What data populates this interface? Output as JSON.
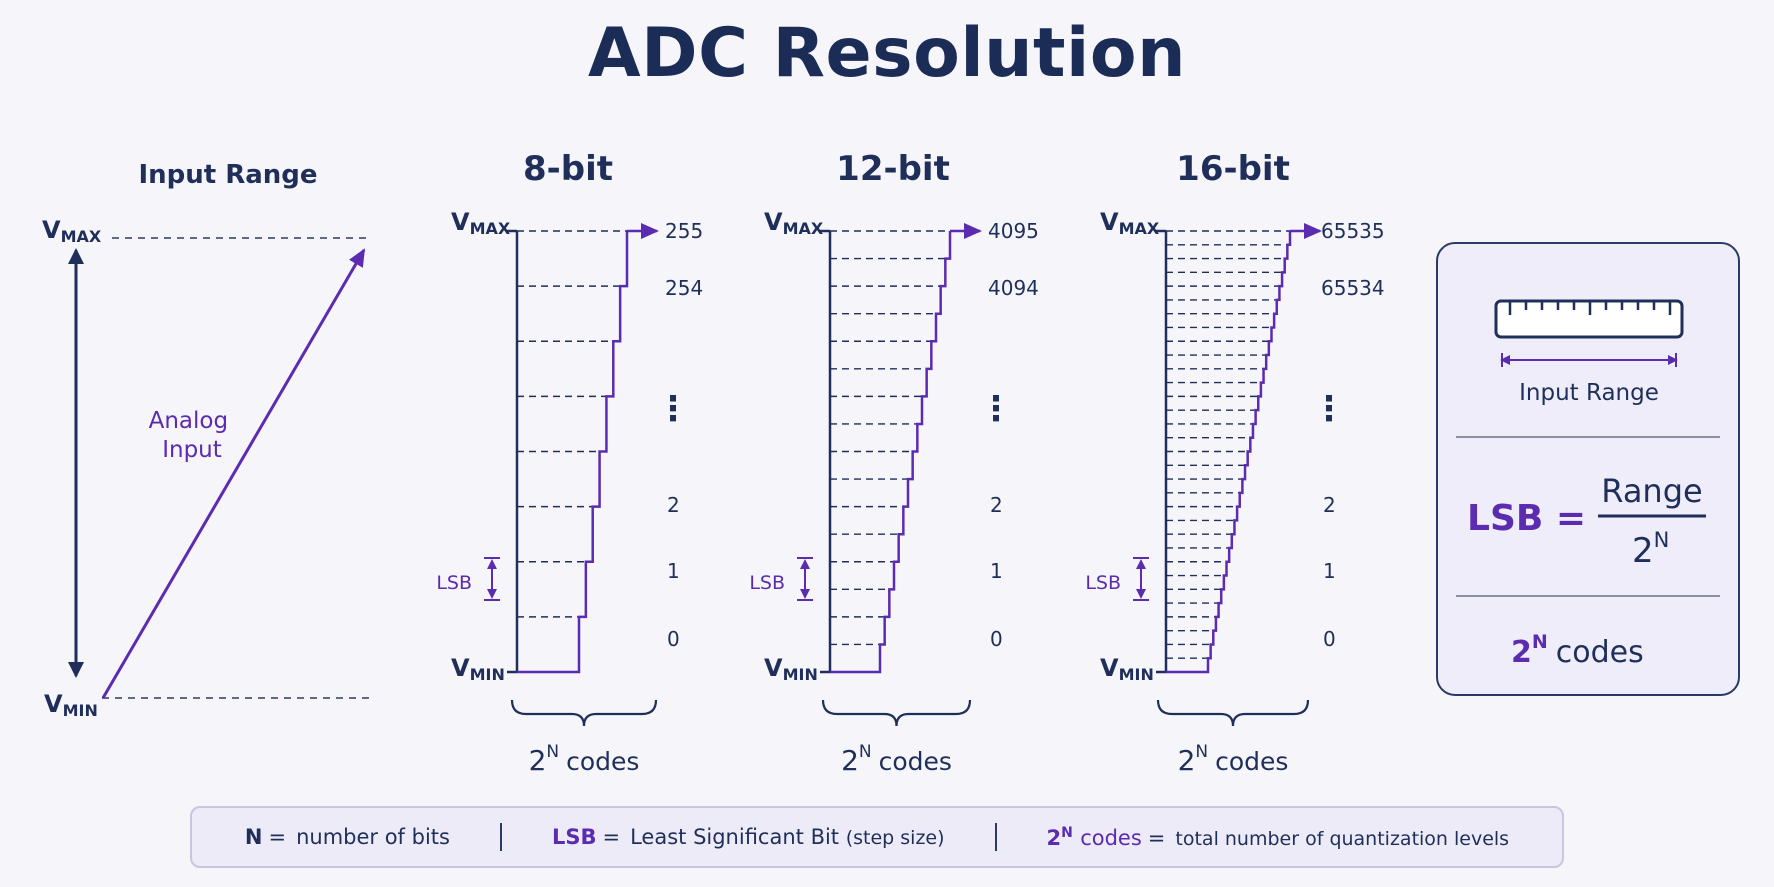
{
  "title": "ADC Resolution",
  "input_panel": {
    "heading": "Input Range",
    "vmax": {
      "main": "V",
      "sub": "MAX"
    },
    "vmin": {
      "main": "V",
      "sub": "MIN"
    },
    "analog_label": [
      "Analog",
      "Input"
    ]
  },
  "adc_panels": [
    {
      "heading": "8-bit",
      "codes_top": [
        "255",
        "254"
      ],
      "codes_bottom": [
        "2",
        "1",
        "0"
      ],
      "vertical_dots": "⋮",
      "lsb_label": "LSB",
      "vmax": {
        "main": "V",
        "sub": "MAX"
      },
      "vmin": {
        "main": "V",
        "sub": "MIN"
      },
      "footer": {
        "base": "2",
        "exp": "N",
        "text": "codes"
      },
      "steps_drawn": 7
    },
    {
      "heading": "12-bit",
      "codes_top": [
        "4095",
        "4094"
      ],
      "codes_bottom": [
        "2",
        "1",
        "0"
      ],
      "vertical_dots": "⋮",
      "lsb_label": "LSB",
      "vmax": {
        "main": "V",
        "sub": "MAX"
      },
      "vmin": {
        "main": "V",
        "sub": "MIN"
      },
      "footer": {
        "base": "2",
        "exp": "N",
        "text": "codes"
      },
      "steps_drawn": 15
    },
    {
      "heading": "16-bit",
      "codes_top": [
        "65535",
        "65534"
      ],
      "codes_bottom": [
        "2",
        "1",
        "0"
      ],
      "vertical_dots": "⋮",
      "lsb_label": "LSB",
      "vmax": {
        "main": "V",
        "sub": "MAX"
      },
      "vmin": {
        "main": "V",
        "sub": "MIN"
      },
      "footer": {
        "base": "2",
        "exp": "N",
        "text": "codes"
      },
      "steps_drawn": 31
    }
  ],
  "formula_box": {
    "ruler_label": "Input Range",
    "lhs": "LSB =",
    "numerator": "Range",
    "denominator": {
      "base": "2",
      "exp": "N"
    },
    "codes": {
      "base": "2",
      "exp": "N",
      "text": "codes"
    }
  },
  "legend": {
    "n_symbol": "N",
    "n_eq": "=",
    "n_desc": "number of bits",
    "lsb_symbol": "LSB",
    "lsb_eq": "=",
    "lsb_desc": "Least Significant Bit",
    "lsb_note": "(step size)",
    "codes_base": "2",
    "codes_exp": "N",
    "codes_word": "codes",
    "codes_eq": "=",
    "codes_desc": "total number of quantization levels"
  },
  "colors": {
    "navy": "#1f2f5a",
    "purple": "#5b2bb0",
    "box_fill": "#efedf9",
    "box_border": "#2b3a66"
  }
}
